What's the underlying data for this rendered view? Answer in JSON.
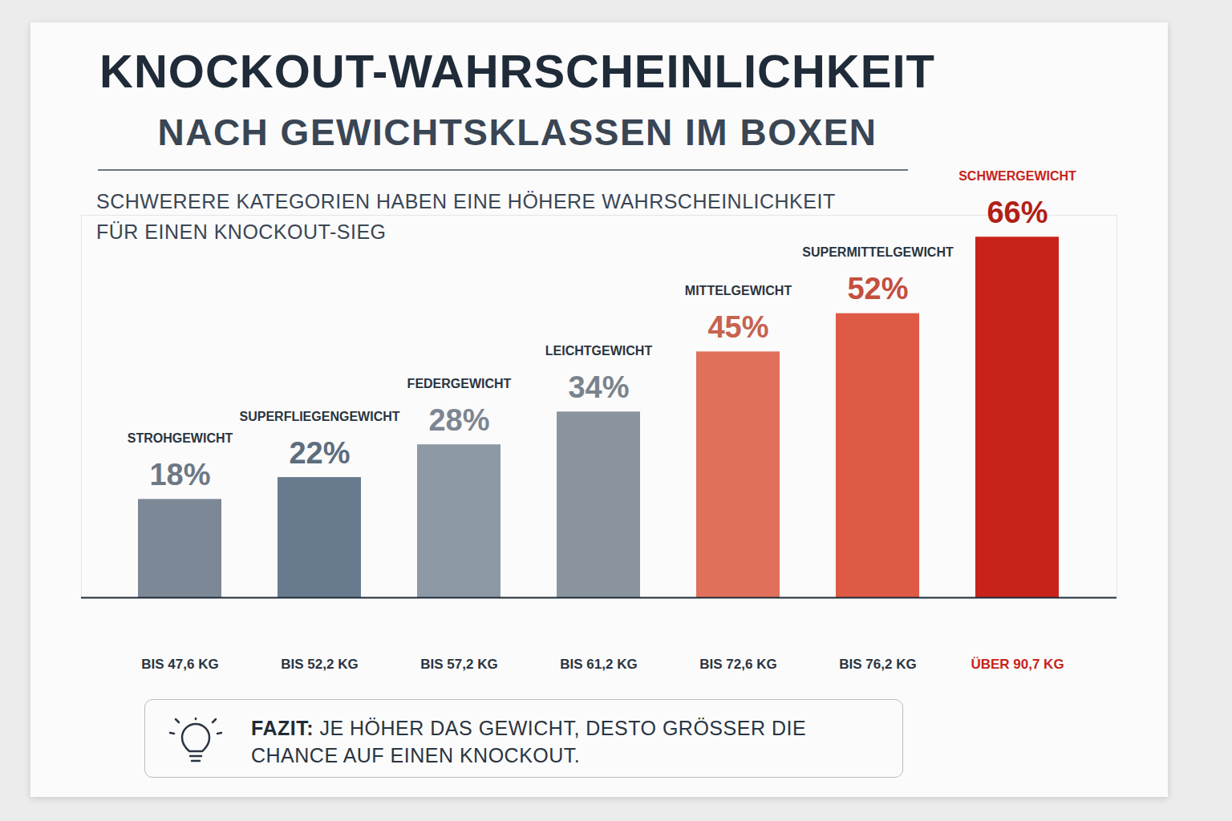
{
  "chart_data": {
    "type": "bar",
    "title": "KNOCKOUT-WAHRSCHEINLICHKEIT",
    "subtitle": "NACH GEWICHTSKLASSEN IM BOXEN",
    "annotation": "SCHWERERE KATEGORIEN HABEN EINE HÖHERE WAHRSCHEINLICHKEIT FÜR EINEN KNOCKOUT-SIEG",
    "categories": [
      "STROHGEWICHT",
      "SUPERFLIEGENGEWICHT",
      "FEDERGEWICHT",
      "LEICHTGEWICHT",
      "MITTELGEWICHT",
      "SUPERMITTELGEWICHT",
      "SCHWERGEWICHT"
    ],
    "weights": [
      "BIS 47,6 KG",
      "BIS 52,2 KG",
      "BIS 57,2 KG",
      "BIS 61,2 KG",
      "BIS 72,6 KG",
      "BIS 76,2 KG",
      "ÜBER 90,7 KG"
    ],
    "values": [
      18,
      22,
      28,
      34,
      45,
      52,
      66
    ],
    "value_labels": [
      "18%",
      "22%",
      "28%",
      "34%",
      "45%",
      "52%",
      "66%"
    ],
    "colors": [
      "#7c8896",
      "#687b8e",
      "#8d98a5",
      "#8a949f",
      "#e0705a",
      "#de5a45",
      "#c8231a"
    ],
    "ylim": [
      0,
      70
    ],
    "yticks": [],
    "tick_labels": false,
    "data_labels": true,
    "grid": false,
    "conclusion": {
      "label": "FAZIT:",
      "text": "JE HÖHER DAS GEWICHT, DESTO GRÖSSER DIE CHANCE AUF EINEN KNOCKOUT."
    }
  }
}
